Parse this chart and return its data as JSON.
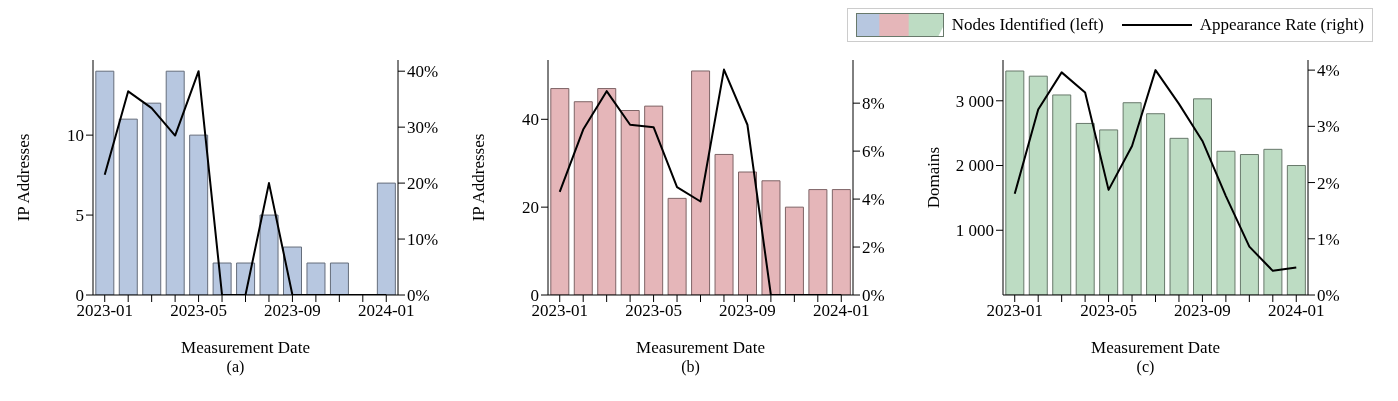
{
  "chart_data": [
    {
      "type": "bar",
      "title": "(a)",
      "xlabel": "Measurement Date",
      "ylabel": "IP Addresses",
      "categories": [
        "2023-01",
        null,
        null,
        null,
        "2023-05",
        null,
        null,
        null,
        "2023-09",
        null,
        null,
        null,
        "2024-01"
      ],
      "series": [
        {
          "color": "#b7c7e0",
          "values": [
            14,
            11,
            12,
            14,
            10,
            2,
            2,
            5,
            3,
            2,
            2,
            0,
            7
          ]
        },
        {
          "type": "line",
          "axis": "y2",
          "color": "#000000",
          "values": [
            21.5,
            36.4,
            33.4,
            28.5,
            40,
            0,
            0,
            20,
            0,
            0,
            0,
            0,
            0
          ]
        }
      ],
      "ylim": [
        0,
        14.7
      ],
      "yticks": [
        0,
        5,
        10
      ],
      "y2lim": [
        0,
        42
      ],
      "y2ticks": [
        {
          "value": 0,
          "label": "0%"
        },
        {
          "value": 10,
          "label": "10%"
        },
        {
          "value": 20,
          "label": "20%"
        },
        {
          "value": 30,
          "label": "30%"
        },
        {
          "value": 40,
          "label": "40%"
        }
      ],
      "grid": false
    },
    {
      "type": "bar",
      "title": "(b)",
      "xlabel": "Measurement Date",
      "ylabel": "IP Addresses",
      "categories": [
        "2023-01",
        null,
        null,
        null,
        "2023-05",
        null,
        null,
        null,
        "2023-09",
        null,
        null,
        null,
        "2024-01"
      ],
      "series": [
        {
          "color": "#e5b6b9",
          "values": [
            47,
            44,
            47,
            42,
            43,
            22,
            51,
            32,
            28,
            26,
            20,
            24,
            24
          ]
        },
        {
          "type": "line",
          "axis": "y2",
          "color": "#000000",
          "values": [
            4.3,
            6.9,
            8.5,
            7.1,
            7.0,
            4.5,
            3.9,
            9.4,
            7.1,
            0,
            0,
            0,
            0
          ]
        }
      ],
      "ylim": [
        0,
        53.5
      ],
      "yticks": [
        0,
        20,
        40
      ],
      "y2lim": [
        0,
        9.8
      ],
      "y2ticks": [
        {
          "value": 0,
          "label": "0%"
        },
        {
          "value": 2,
          "label": "2%"
        },
        {
          "value": 4,
          "label": "4%"
        },
        {
          "value": 6,
          "label": "6%"
        },
        {
          "value": 8,
          "label": "8%"
        }
      ],
      "grid": false
    },
    {
      "type": "bar",
      "title": "(c)",
      "xlabel": "Measurement Date",
      "ylabel": "Domains",
      "categories": [
        "2023-01",
        null,
        null,
        null,
        "2023-05",
        null,
        null,
        null,
        "2023-09",
        null,
        null,
        null,
        "2024-01"
      ],
      "series": [
        {
          "name": "Nodes Identified (left)",
          "color": "#bddcc3",
          "values": [
            3460,
            3380,
            3090,
            2650,
            2550,
            2970,
            2800,
            2420,
            3030,
            2220,
            2170,
            2250,
            2000
          ]
        },
        {
          "name": "Appearance Rate (right)",
          "type": "line",
          "axis": "y2",
          "color": "#000000",
          "values": [
            1.8,
            3.3,
            3.96,
            3.6,
            1.87,
            2.65,
            4.0,
            3.4,
            2.74,
            1.76,
            0.86,
            0.43,
            0.49
          ]
        }
      ],
      "ylim": [
        0,
        3630
      ],
      "yticks": [
        {
          "value": 1000,
          "label": "1 000"
        },
        {
          "value": 2000,
          "label": "2 000"
        },
        {
          "value": 3000,
          "label": "3 000"
        }
      ],
      "y2lim": [
        0,
        4.18
      ],
      "y2ticks": [
        {
          "value": 0,
          "label": "0%"
        },
        {
          "value": 1,
          "label": "1%"
        },
        {
          "value": 2,
          "label": "2%"
        },
        {
          "value": 3,
          "label": "3%"
        },
        {
          "value": 4,
          "label": "4%"
        }
      ],
      "grid": false,
      "legend": "top right"
    }
  ]
}
